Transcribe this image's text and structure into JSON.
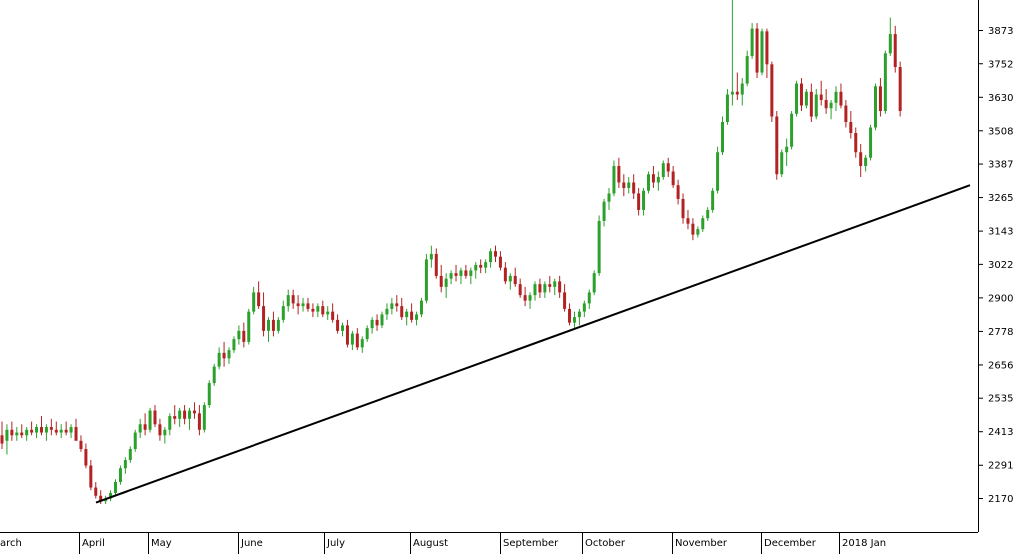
{
  "chart_data": {
    "type": "candlestick",
    "title": "",
    "xlabel": "",
    "ylabel": "",
    "y_range": [
      2095,
      3990
    ],
    "y_ticks": [
      2170,
      2291,
      2413,
      2535,
      2656,
      2778,
      2900,
      3022,
      3143,
      3265,
      3387,
      3508,
      3630,
      3752,
      3873
    ],
    "y_axis_position": "right",
    "grid": false,
    "x_labels": [
      "arch",
      "April",
      "May",
      "June",
      "July",
      "August",
      "September",
      "October",
      "November",
      "December",
      "2018 Jan"
    ],
    "up_color": "#2ca02c",
    "down_color": "#b22222",
    "trendline": {
      "start": {
        "label": "April",
        "value": 2155
      },
      "end": {
        "label": "2018 Jan",
        "value": 3310
      }
    },
    "candles_ohlc": [
      [
        2400,
        2450,
        2350,
        2370
      ],
      [
        2380,
        2440,
        2330,
        2420
      ],
      [
        2420,
        2450,
        2380,
        2400
      ],
      [
        2400,
        2430,
        2380,
        2410
      ],
      [
        2410,
        2440,
        2390,
        2400
      ],
      [
        2400,
        2430,
        2380,
        2420
      ],
      [
        2420,
        2450,
        2400,
        2410
      ],
      [
        2410,
        2440,
        2390,
        2430
      ],
      [
        2430,
        2470,
        2400,
        2410
      ],
      [
        2410,
        2440,
        2380,
        2430
      ],
      [
        2430,
        2460,
        2400,
        2420
      ],
      [
        2420,
        2450,
        2400,
        2410
      ],
      [
        2410,
        2440,
        2390,
        2420
      ],
      [
        2420,
        2450,
        2400,
        2410
      ],
      [
        2410,
        2440,
        2390,
        2430
      ],
      [
        2430,
        2460,
        2400,
        2380
      ],
      [
        2380,
        2400,
        2340,
        2350
      ],
      [
        2350,
        2370,
        2280,
        2290
      ],
      [
        2290,
        2310,
        2200,
        2210
      ],
      [
        2210,
        2230,
        2170,
        2180
      ],
      [
        2180,
        2200,
        2150,
        2160
      ],
      [
        2160,
        2180,
        2150,
        2170
      ],
      [
        2170,
        2200,
        2160,
        2190
      ],
      [
        2190,
        2240,
        2180,
        2230
      ],
      [
        2230,
        2290,
        2220,
        2280
      ],
      [
        2280,
        2320,
        2260,
        2310
      ],
      [
        2310,
        2360,
        2300,
        2350
      ],
      [
        2350,
        2420,
        2340,
        2410
      ],
      [
        2410,
        2460,
        2390,
        2440
      ],
      [
        2440,
        2480,
        2400,
        2420
      ],
      [
        2420,
        2500,
        2410,
        2490
      ],
      [
        2490,
        2510,
        2430,
        2440
      ],
      [
        2440,
        2460,
        2380,
        2400
      ],
      [
        2400,
        2430,
        2370,
        2420
      ],
      [
        2420,
        2480,
        2400,
        2470
      ],
      [
        2470,
        2510,
        2440,
        2460
      ],
      [
        2460,
        2500,
        2430,
        2490
      ],
      [
        2490,
        2510,
        2440,
        2460
      ],
      [
        2460,
        2500,
        2420,
        2490
      ],
      [
        2490,
        2520,
        2460,
        2480
      ],
      [
        2480,
        2510,
        2400,
        2420
      ],
      [
        2420,
        2520,
        2410,
        2510
      ],
      [
        2510,
        2600,
        2500,
        2590
      ],
      [
        2590,
        2660,
        2580,
        2650
      ],
      [
        2650,
        2720,
        2640,
        2700
      ],
      [
        2700,
        2740,
        2650,
        2680
      ],
      [
        2680,
        2720,
        2660,
        2710
      ],
      [
        2710,
        2760,
        2700,
        2750
      ],
      [
        2750,
        2800,
        2730,
        2780
      ],
      [
        2780,
        2810,
        2720,
        2740
      ],
      [
        2740,
        2860,
        2730,
        2850
      ],
      [
        2850,
        2940,
        2840,
        2920
      ],
      [
        2920,
        2960,
        2860,
        2870
      ],
      [
        2870,
        2920,
        2760,
        2780
      ],
      [
        2780,
        2830,
        2740,
        2820
      ],
      [
        2820,
        2850,
        2760,
        2780
      ],
      [
        2780,
        2830,
        2770,
        2820
      ],
      [
        2820,
        2890,
        2810,
        2870
      ],
      [
        2870,
        2930,
        2850,
        2910
      ],
      [
        2910,
        2930,
        2860,
        2880
      ],
      [
        2880,
        2910,
        2840,
        2870
      ],
      [
        2870,
        2900,
        2850,
        2880
      ],
      [
        2880,
        2900,
        2850,
        2860
      ],
      [
        2860,
        2880,
        2830,
        2850
      ],
      [
        2850,
        2880,
        2830,
        2870
      ],
      [
        2870,
        2890,
        2830,
        2840
      ],
      [
        2840,
        2870,
        2820,
        2850
      ],
      [
        2850,
        2880,
        2810,
        2820
      ],
      [
        2820,
        2840,
        2770,
        2780
      ],
      [
        2780,
        2810,
        2760,
        2800
      ],
      [
        2800,
        2820,
        2720,
        2730
      ],
      [
        2730,
        2780,
        2710,
        2770
      ],
      [
        2770,
        2790,
        2710,
        2720
      ],
      [
        2720,
        2760,
        2700,
        2750
      ],
      [
        2750,
        2800,
        2740,
        2790
      ],
      [
        2790,
        2830,
        2770,
        2820
      ],
      [
        2820,
        2840,
        2780,
        2800
      ],
      [
        2800,
        2850,
        2790,
        2840
      ],
      [
        2840,
        2880,
        2820,
        2860
      ],
      [
        2860,
        2900,
        2840,
        2880
      ],
      [
        2880,
        2910,
        2850,
        2870
      ],
      [
        2870,
        2900,
        2820,
        2830
      ],
      [
        2830,
        2860,
        2800,
        2850
      ],
      [
        2850,
        2880,
        2810,
        2820
      ],
      [
        2820,
        2850,
        2800,
        2840
      ],
      [
        2840,
        2900,
        2830,
        2890
      ],
      [
        2890,
        3060,
        2880,
        3040
      ],
      [
        3040,
        3090,
        3010,
        3060
      ],
      [
        3060,
        3080,
        2970,
        2980
      ],
      [
        2980,
        3020,
        2920,
        2940
      ],
      [
        2940,
        2990,
        2900,
        2970
      ],
      [
        2970,
        3000,
        2950,
        2990
      ],
      [
        2990,
        3020,
        2960,
        2980
      ],
      [
        2980,
        3010,
        2950,
        3000
      ],
      [
        3000,
        3020,
        2970,
        2980
      ],
      [
        2980,
        3010,
        2950,
        3000
      ],
      [
        3000,
        3030,
        2970,
        3020
      ],
      [
        3020,
        3040,
        2990,
        3010
      ],
      [
        3010,
        3040,
        2990,
        3030
      ],
      [
        3030,
        3080,
        3010,
        3070
      ],
      [
        3070,
        3090,
        3030,
        3050
      ],
      [
        3050,
        3070,
        3000,
        3010
      ],
      [
        3010,
        3030,
        2950,
        2960
      ],
      [
        2960,
        2990,
        2930,
        2980
      ],
      [
        2980,
        3010,
        2940,
        2950
      ],
      [
        2950,
        2970,
        2900,
        2910
      ],
      [
        2910,
        2940,
        2870,
        2890
      ],
      [
        2890,
        2920,
        2860,
        2910
      ],
      [
        2910,
        2960,
        2890,
        2950
      ],
      [
        2950,
        2970,
        2900,
        2920
      ],
      [
        2920,
        2960,
        2900,
        2950
      ],
      [
        2950,
        2980,
        2920,
        2940
      ],
      [
        2940,
        2970,
        2910,
        2960
      ],
      [
        2960,
        2980,
        2900,
        2920
      ],
      [
        2920,
        2950,
        2850,
        2860
      ],
      [
        2860,
        2880,
        2800,
        2810
      ],
      [
        2810,
        2850,
        2790,
        2830
      ],
      [
        2830,
        2860,
        2800,
        2850
      ],
      [
        2850,
        2890,
        2830,
        2880
      ],
      [
        2880,
        2930,
        2860,
        2920
      ],
      [
        2920,
        3000,
        2910,
        2990
      ],
      [
        2990,
        3200,
        2980,
        3180
      ],
      [
        3180,
        3260,
        3160,
        3250
      ],
      [
        3250,
        3300,
        3220,
        3280
      ],
      [
        3280,
        3400,
        3270,
        3380
      ],
      [
        3380,
        3410,
        3300,
        3320
      ],
      [
        3320,
        3350,
        3270,
        3300
      ],
      [
        3300,
        3340,
        3280,
        3320
      ],
      [
        3320,
        3350,
        3260,
        3280
      ],
      [
        3280,
        3300,
        3200,
        3220
      ],
      [
        3220,
        3300,
        3200,
        3290
      ],
      [
        3290,
        3360,
        3280,
        3350
      ],
      [
        3350,
        3380,
        3300,
        3320
      ],
      [
        3320,
        3360,
        3290,
        3340
      ],
      [
        3340,
        3400,
        3330,
        3390
      ],
      [
        3390,
        3410,
        3340,
        3360
      ],
      [
        3360,
        3380,
        3300,
        3310
      ],
      [
        3310,
        3330,
        3240,
        3260
      ],
      [
        3260,
        3280,
        3170,
        3190
      ],
      [
        3190,
        3220,
        3150,
        3170
      ],
      [
        3170,
        3190,
        3110,
        3130
      ],
      [
        3130,
        3160,
        3120,
        3150
      ],
      [
        3150,
        3200,
        3140,
        3190
      ],
      [
        3190,
        3230,
        3180,
        3220
      ],
      [
        3220,
        3300,
        3210,
        3290
      ],
      [
        3290,
        3450,
        3280,
        3430
      ],
      [
        3430,
        3560,
        3420,
        3540
      ],
      [
        3540,
        3660,
        3530,
        3640
      ],
      [
        3640,
        3990,
        3600,
        3650
      ],
      [
        3650,
        3720,
        3620,
        3640
      ],
      [
        3640,
        3700,
        3600,
        3680
      ],
      [
        3680,
        3800,
        3670,
        3780
      ],
      [
        3780,
        3900,
        3770,
        3880
      ],
      [
        3880,
        3900,
        3700,
        3720
      ],
      [
        3720,
        3880,
        3710,
        3870
      ],
      [
        3870,
        3880,
        3700,
        3750
      ],
      [
        3750,
        3760,
        3540,
        3560
      ],
      [
        3560,
        3580,
        3330,
        3350
      ],
      [
        3350,
        3440,
        3340,
        3430
      ],
      [
        3430,
        3480,
        3380,
        3450
      ],
      [
        3450,
        3580,
        3440,
        3570
      ],
      [
        3570,
        3690,
        3560,
        3680
      ],
      [
        3680,
        3700,
        3580,
        3600
      ],
      [
        3600,
        3660,
        3590,
        3650
      ],
      [
        3650,
        3680,
        3540,
        3560
      ],
      [
        3560,
        3660,
        3550,
        3640
      ],
      [
        3640,
        3690,
        3600,
        3620
      ],
      [
        3620,
        3660,
        3570,
        3590
      ],
      [
        3590,
        3620,
        3550,
        3610
      ],
      [
        3610,
        3670,
        3580,
        3650
      ],
      [
        3650,
        3680,
        3590,
        3600
      ],
      [
        3600,
        3620,
        3520,
        3540
      ],
      [
        3540,
        3580,
        3480,
        3500
      ],
      [
        3500,
        3520,
        3410,
        3430
      ],
      [
        3430,
        3460,
        3340,
        3380
      ],
      [
        3380,
        3420,
        3360,
        3410
      ],
      [
        3410,
        3530,
        3400,
        3520
      ],
      [
        3520,
        3680,
        3510,
        3670
      ],
      [
        3670,
        3700,
        3560,
        3580
      ],
      [
        3580,
        3800,
        3570,
        3790
      ],
      [
        3790,
        3920,
        3780,
        3860
      ],
      [
        3860,
        3890,
        3720,
        3740
      ],
      [
        3740,
        3760,
        3560,
        3580
      ]
    ]
  }
}
